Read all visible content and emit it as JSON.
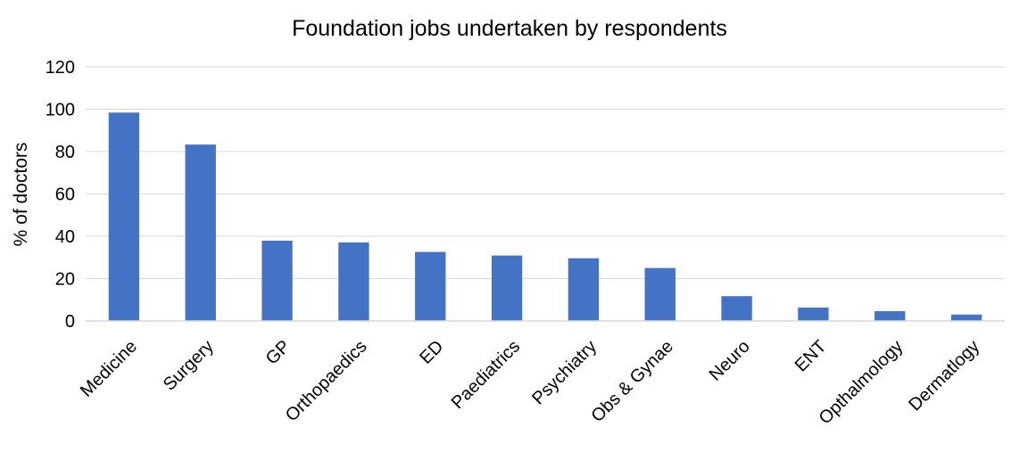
{
  "chart_data": {
    "type": "bar",
    "title": "Foundation jobs undertaken by respondents",
    "xlabel": "",
    "ylabel": "% of doctors",
    "categories": [
      "Medicine",
      "Surgery",
      "GP",
      "Orthopaedics",
      "ED",
      "Paediatrics",
      "Psychiatry",
      "Obs & Gynae",
      "Neuro",
      "ENT",
      "Opthalmology",
      "Dermatlogy"
    ],
    "values": [
      98.4,
      83.3,
      37.9,
      37.1,
      32.6,
      30.9,
      29.6,
      25.0,
      11.7,
      6.3,
      4.6,
      3.0
    ],
    "ylim": [
      0,
      120
    ],
    "yticks": [
      "0",
      "20",
      "40",
      "60",
      "80",
      "100",
      "120"
    ],
    "grid": true,
    "legend": "none",
    "bar_color": "#4472C4",
    "grid_color": "#D9D9D9"
  }
}
